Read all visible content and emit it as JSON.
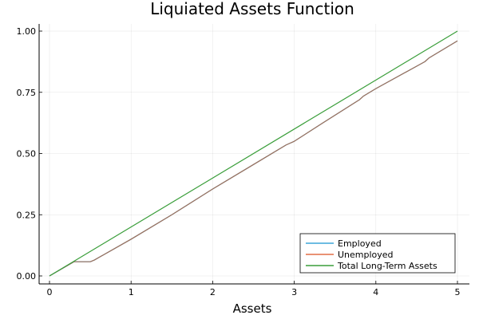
{
  "chart_data": {
    "type": "line",
    "title": "Liquiated Assets Function",
    "xlabel": "Assets",
    "ylabel": "",
    "xlim": [
      0,
      5
    ],
    "ylim": [
      0,
      1
    ],
    "xticks": [
      0,
      1,
      2,
      3,
      4,
      5
    ],
    "xtick_labels": [
      "0",
      "1",
      "2",
      "3",
      "4",
      "5"
    ],
    "yticks": [
      0,
      0.25,
      0.5,
      0.75,
      1.0
    ],
    "ytick_labels": [
      "0.00",
      "0.25",
      "0.50",
      "0.75",
      "1.00"
    ],
    "grid": true,
    "legend_position": "bottom-right",
    "series": [
      {
        "name": "Employed",
        "color": "#3da5d9",
        "x": [
          0,
          0.3,
          0.5,
          0.55,
          1.0,
          1.5,
          2.0,
          2.5,
          2.9,
          3.0,
          3.35,
          3.8,
          3.85,
          4.0,
          4.6,
          4.65,
          5.0
        ],
        "y": [
          0,
          0.058,
          0.058,
          0.065,
          0.15,
          0.25,
          0.355,
          0.455,
          0.535,
          0.55,
          0.625,
          0.72,
          0.735,
          0.765,
          0.875,
          0.89,
          0.96
        ]
      },
      {
        "name": "Unemployed",
        "color": "#e26f46",
        "x": [
          0,
          0.3,
          0.5,
          0.55,
          1.0,
          1.5,
          2.0,
          2.5,
          2.9,
          3.0,
          3.35,
          3.8,
          3.85,
          4.0,
          4.6,
          4.65,
          5.0
        ],
        "y": [
          0,
          0.058,
          0.058,
          0.065,
          0.15,
          0.25,
          0.355,
          0.455,
          0.535,
          0.55,
          0.625,
          0.72,
          0.735,
          0.765,
          0.875,
          0.89,
          0.96
        ]
      },
      {
        "name": "Total Long-Term Assets",
        "color": "#3a9e3a",
        "x": [
          0,
          5
        ],
        "y": [
          0,
          1.0
        ]
      }
    ]
  },
  "overlay_colors": {
    "brown_overlap": "#a0705a"
  }
}
